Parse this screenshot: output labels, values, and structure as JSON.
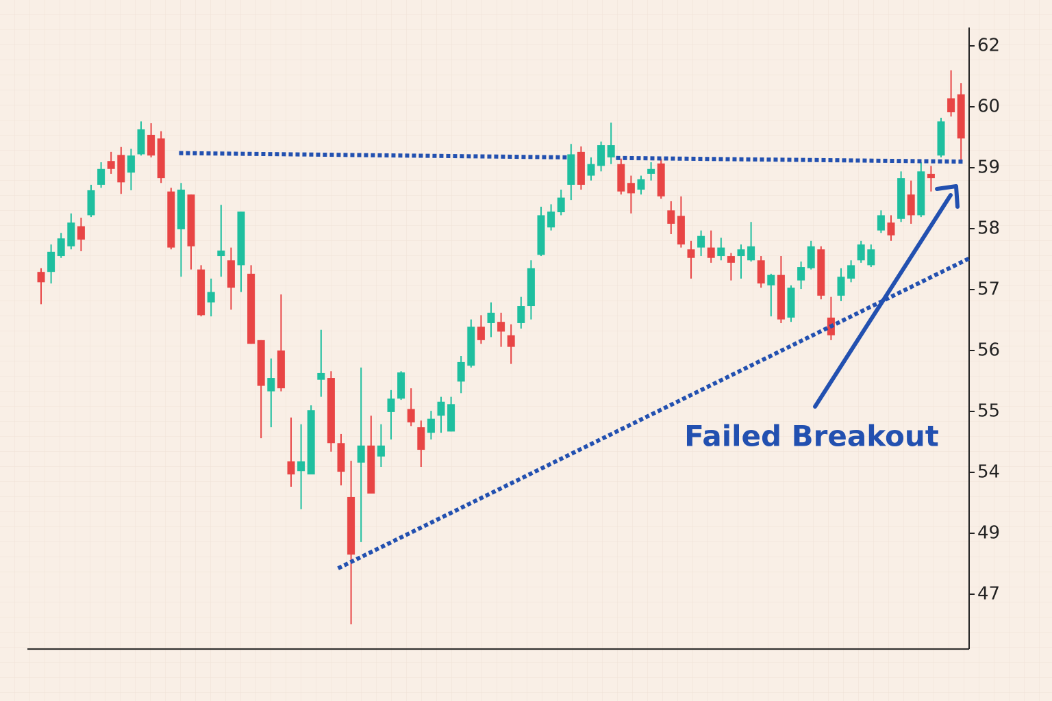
{
  "chart_data": {
    "type": "candlestick",
    "open": [
      57.29,
      57.29,
      57.55,
      57.71,
      58.04,
      58.22,
      58.72,
      59.11,
      59.21,
      58.92,
      59.22,
      59.54,
      59.48,
      58.61,
      57.99,
      58.56,
      57.33,
      56.79,
      57.55,
      57.48,
      57.4,
      57.26,
      56.17,
      55.33,
      56.0,
      54.18,
      54.02,
      53.83,
      55.52,
      55.55,
      54.48,
      51.98,
      54.16,
      54.44,
      54.26,
      54.99,
      55.21,
      55.04,
      54.74,
      54.65,
      54.93,
      54.67,
      55.49,
      55.75,
      56.39,
      56.45,
      56.47,
      56.25,
      56.45,
      56.73,
      57.57,
      58.02,
      58.27,
      58.72,
      59.26,
      58.87,
      59.03,
      59.17,
      59.06,
      58.75,
      58.64,
      58.9,
      59.07,
      58.3,
      58.21,
      57.66,
      57.69,
      57.69,
      57.55,
      57.55,
      57.55,
      57.48,
      57.48,
      57.07,
      57.24,
      56.54,
      57.15,
      57.35,
      57.66,
      56.54,
      56.9,
      57.18,
      57.48,
      57.4,
      57.97,
      58.1,
      58.16,
      58.56,
      58.22,
      58.9,
      59.2,
      60.28,
      60.41
    ],
    "high": [
      57.35,
      57.74,
      57.93,
      58.25,
      58.18,
      58.72,
      59.09,
      59.26,
      59.34,
      59.31,
      59.76,
      59.73,
      59.6,
      58.67,
      58.75,
      58.56,
      57.4,
      57.18,
      58.39,
      57.69,
      58.28,
      57.4,
      56.17,
      55.87,
      56.92,
      54.9,
      54.79,
      55.1,
      56.34,
      55.66,
      54.63,
      54.19,
      55.72,
      54.93,
      54.79,
      55.35,
      55.66,
      55.38,
      54.85,
      55.01,
      55.24,
      55.24,
      55.91,
      56.51,
      56.58,
      56.79,
      56.62,
      56.43,
      56.88,
      57.48,
      58.36,
      58.4,
      58.64,
      59.39,
      59.35,
      59.17,
      59.43,
      59.74,
      59.15,
      58.87,
      58.87,
      59.09,
      59.15,
      58.45,
      58.53,
      57.8,
      57.97,
      57.97,
      57.85,
      57.6,
      57.74,
      58.11,
      57.55,
      57.26,
      57.55,
      57.07,
      57.46,
      57.8,
      57.71,
      56.88,
      57.35,
      57.48,
      57.8,
      57.74,
      58.3,
      58.22,
      58.94,
      58.79,
      59.09,
      59.03,
      59.82,
      61.2,
      60.78
    ],
    "low": [
      56.76,
      57.1,
      57.52,
      57.66,
      57.63,
      58.19,
      58.67,
      58.9,
      58.57,
      58.63,
      59.2,
      59.17,
      58.75,
      57.66,
      57.21,
      57.33,
      56.56,
      56.56,
      57.21,
      56.67,
      56.96,
      56.11,
      54.56,
      54.74,
      55.33,
      52.82,
      50.97,
      53.83,
      55.24,
      54.34,
      52.93,
      46.01,
      48.71,
      52.26,
      54.09,
      54.54,
      55.19,
      54.76,
      54.09,
      54.54,
      54.65,
      54.67,
      55.3,
      55.72,
      56.11,
      56.22,
      56.06,
      55.78,
      56.36,
      56.51,
      57.55,
      57.97,
      58.22,
      58.47,
      58.64,
      58.79,
      58.94,
      59.06,
      58.56,
      58.25,
      58.56,
      58.79,
      58.49,
      57.91,
      57.69,
      57.18,
      57.55,
      57.44,
      57.48,
      57.15,
      57.18,
      57.46,
      57.03,
      56.56,
      56.45,
      56.47,
      57.01,
      57.33,
      56.84,
      56.17,
      56.81,
      57.12,
      57.44,
      57.37,
      57.93,
      57.8,
      58.11,
      58.08,
      58.19,
      58.61,
      59.17,
      59.84,
      59.12
    ],
    "close": [
      57.12,
      57.62,
      57.84,
      58.1,
      57.82,
      58.63,
      58.98,
      58.98,
      58.76,
      59.2,
      59.63,
      59.2,
      58.83,
      57.69,
      58.64,
      57.71,
      56.58,
      56.96,
      57.64,
      57.03,
      58.28,
      56.11,
      55.42,
      55.55,
      55.38,
      53.83,
      54.18,
      55.02,
      55.63,
      54.48,
      54.01,
      48.3,
      54.44,
      52.26,
      54.44,
      55.21,
      55.64,
      54.82,
      54.37,
      54.88,
      55.16,
      55.12,
      55.81,
      56.39,
      56.17,
      56.62,
      56.31,
      56.06,
      56.73,
      57.35,
      58.22,
      58.28,
      58.51,
      59.22,
      58.72,
      59.06,
      59.37,
      59.37,
      58.61,
      58.58,
      58.81,
      58.98,
      58.53,
      58.08,
      57.74,
      57.52,
      57.88,
      57.52,
      57.69,
      57.44,
      57.66,
      57.71,
      57.1,
      57.24,
      56.51,
      57.03,
      57.37,
      57.71,
      56.9,
      56.25,
      57.21,
      57.4,
      57.74,
      57.66,
      58.22,
      57.89,
      58.83,
      58.22,
      58.94,
      58.83,
      59.76,
      59.91,
      59.48
    ],
    "up_color": "#1fbf9f",
    "down_color": "#e84545",
    "ylim": [
      45.2,
      62.6
    ],
    "yticks": [
      62,
      60,
      59,
      58,
      57,
      56,
      55,
      54,
      49,
      47
    ],
    "lines": [
      {
        "x": [
          13.8,
          52.7
        ],
        "y": [
          59.24,
          59.17
        ]
      },
      {
        "x": [
          57.5,
          92.3
        ],
        "y": [
          59.16,
          59.1
        ]
      },
      {
        "x": [
          29.7,
          92.8
        ],
        "y": [
          47.85,
          57.51
        ]
      }
    ],
    "line_color": "#2250b0",
    "annotation": "Failed Breakout"
  }
}
